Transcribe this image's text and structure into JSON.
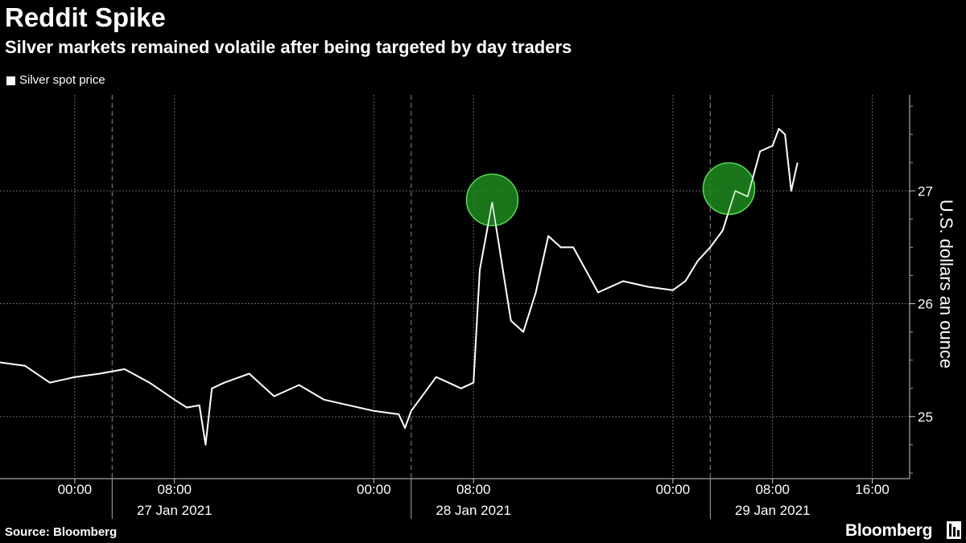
{
  "header": {
    "title": "Reddit Spike",
    "subtitle": "Silver markets remained volatile after being targeted by day traders"
  },
  "legend": {
    "label": "Silver spot price"
  },
  "footer": {
    "source": "Source: Bloomberg",
    "brand": "Bloomberg"
  },
  "colors": {
    "background": "#000000",
    "line": "#ffffff",
    "highlight": "#33cc33"
  },
  "chart_data": {
    "type": "line",
    "title": "Reddit Spike",
    "subtitle": "Silver markets remained volatile after being targeted by day traders",
    "ylabel": "U.S. dollars an ounce",
    "xlabel": "",
    "yaxis_side": "right",
    "ylim": [
      24.45,
      27.85
    ],
    "yticks": [
      25,
      26,
      27
    ],
    "xlim": [
      "2021-01-26 18:00",
      "2021-01-29 19:00"
    ],
    "x_tick_labels": [
      {
        "x": "2021-01-27 00:00",
        "label": "00:00"
      },
      {
        "x": "2021-01-27 08:00",
        "label": "08:00"
      },
      {
        "x": "2021-01-28 00:00",
        "label": "00:00"
      },
      {
        "x": "2021-01-28 08:00",
        "label": "08:00"
      },
      {
        "x": "2021-01-29 00:00",
        "label": "00:00"
      },
      {
        "x": "2021-01-29 08:00",
        "label": "08:00"
      },
      {
        "x": "2021-01-29 16:00",
        "label": "16:00"
      }
    ],
    "date_labels": [
      {
        "x": "2021-01-27 08:00",
        "label": "27 Jan 2021"
      },
      {
        "x": "2021-01-28 08:00",
        "label": "28 Jan 2021"
      },
      {
        "x": "2021-01-29 08:00",
        "label": "29 Jan 2021"
      }
    ],
    "day_separators": [
      "2021-01-27 03:00",
      "2021-01-28 03:00",
      "2021-01-29 03:00"
    ],
    "grid": true,
    "legend_position": "top-left",
    "series": [
      {
        "name": "Silver spot price",
        "x": [
          "2021-01-26 18:00",
          "2021-01-26 20:00",
          "2021-01-26 22:00",
          "2021-01-27 00:00",
          "2021-01-27 02:00",
          "2021-01-27 04:00",
          "2021-01-27 06:00",
          "2021-01-27 08:00",
          "2021-01-27 09:00",
          "2021-01-27 10:00",
          "2021-01-27 10:30",
          "2021-01-27 11:00",
          "2021-01-27 12:00",
          "2021-01-27 14:00",
          "2021-01-27 16:00",
          "2021-01-27 18:00",
          "2021-01-27 20:00",
          "2021-01-27 22:00",
          "2021-01-28 00:00",
          "2021-01-28 02:00",
          "2021-01-28 02:30",
          "2021-01-28 03:00",
          "2021-01-28 04:00",
          "2021-01-28 05:00",
          "2021-01-28 06:00",
          "2021-01-28 07:00",
          "2021-01-28 08:00",
          "2021-01-28 08:30",
          "2021-01-28 09:00",
          "2021-01-28 09:30",
          "2021-01-28 10:00",
          "2021-01-28 10:30",
          "2021-01-28 11:00",
          "2021-01-28 12:00",
          "2021-01-28 13:00",
          "2021-01-28 14:00",
          "2021-01-28 15:00",
          "2021-01-28 16:00",
          "2021-01-28 18:00",
          "2021-01-28 20:00",
          "2021-01-28 22:00",
          "2021-01-29 00:00",
          "2021-01-29 01:00",
          "2021-01-29 02:00",
          "2021-01-29 03:00",
          "2021-01-29 04:00",
          "2021-01-29 05:00",
          "2021-01-29 06:00",
          "2021-01-29 07:00",
          "2021-01-29 08:00",
          "2021-01-29 08:30",
          "2021-01-29 09:00",
          "2021-01-29 09:30",
          "2021-01-29 10:00"
        ],
        "values": [
          25.48,
          25.45,
          25.3,
          25.35,
          25.38,
          25.42,
          25.3,
          25.15,
          25.08,
          25.1,
          24.75,
          25.25,
          25.3,
          25.38,
          25.18,
          25.28,
          25.15,
          25.1,
          25.05,
          25.02,
          24.9,
          25.05,
          25.2,
          25.35,
          25.3,
          25.25,
          25.3,
          26.3,
          26.6,
          26.9,
          26.55,
          26.2,
          25.85,
          25.75,
          26.1,
          26.6,
          26.5,
          26.5,
          26.1,
          26.2,
          26.15,
          26.12,
          26.2,
          26.38,
          26.5,
          26.65,
          27.0,
          26.95,
          27.35,
          27.4,
          27.55,
          27.5,
          27.0,
          27.25
        ]
      }
    ],
    "highlights": [
      {
        "x": "2021-01-28 09:30",
        "y": 26.92
      },
      {
        "x": "2021-01-29 04:30",
        "y": 27.02
      }
    ]
  }
}
